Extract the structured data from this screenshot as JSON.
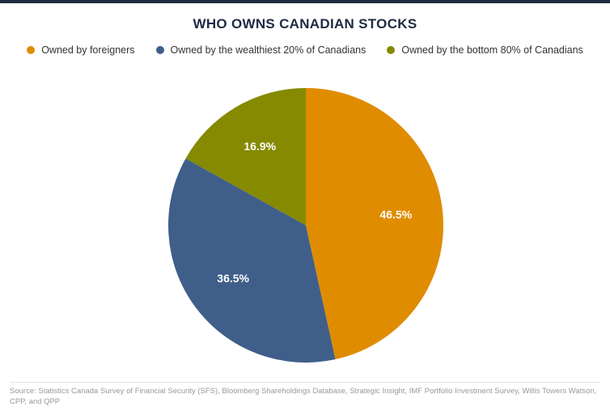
{
  "chart_data": {
    "type": "pie",
    "title": "WHO OWNS CANADIAN STOCKS",
    "slices": [
      {
        "name": "Owned by foreigners",
        "value": 46.5,
        "label": "46.5%",
        "color": "#e08c00"
      },
      {
        "name": "Owned by the wealthiest 20% of Canadians",
        "value": 36.5,
        "label": "36.5%",
        "color": "#3f5f8a"
      },
      {
        "name": "Owned by the bottom 80% of Canadians",
        "value": 16.9,
        "label": "16.9%",
        "color": "#858a00"
      }
    ],
    "legend_position": "top",
    "start_angle": "12 o'clock, clockwise"
  },
  "source": "Source: Statistics Canada Survey of Financial Security (SFS), Bloomberg Shareholdings Database, Strategic Insight, IMF Portfolio Investment Survey, Willis Towers Watson, CPP, and QPP"
}
